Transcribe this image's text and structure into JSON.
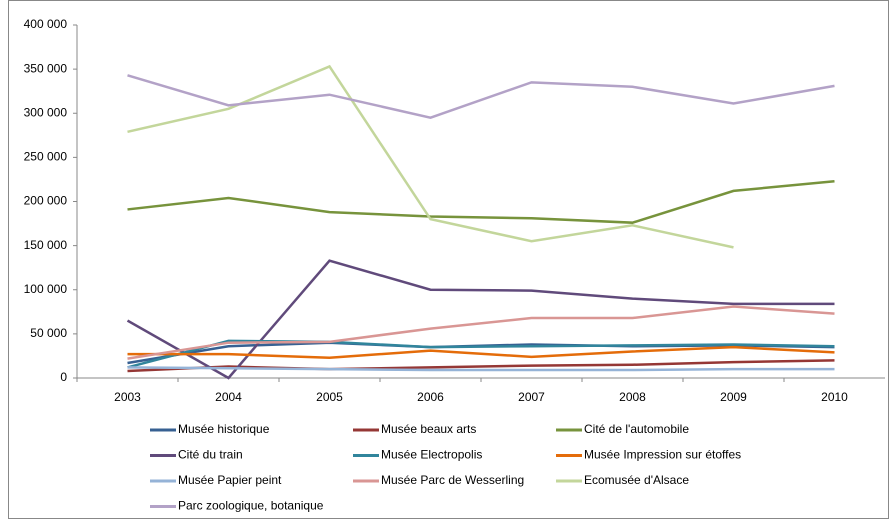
{
  "chart_data": {
    "type": "line",
    "categories": [
      "2003",
      "2004",
      "2005",
      "2006",
      "2007",
      "2008",
      "2009",
      "2010"
    ],
    "ylim": [
      0,
      400000
    ],
    "yticks": [
      {
        "value": 0,
        "label": "0"
      },
      {
        "value": 50000,
        "label": "50 000"
      },
      {
        "value": 100000,
        "label": "100 000"
      },
      {
        "value": 150000,
        "label": "150 000"
      },
      {
        "value": 200000,
        "label": "200 000"
      },
      {
        "value": 250000,
        "label": "250 000"
      },
      {
        "value": 300000,
        "label": "300 000"
      },
      {
        "value": 350000,
        "label": "350 000"
      },
      {
        "value": 400000,
        "label": "400 000"
      }
    ],
    "series": [
      {
        "name": "Musée historique",
        "color": "#376092",
        "values": [
          17000,
          36000,
          40000,
          35000,
          38000,
          36000,
          37000,
          35000
        ]
      },
      {
        "name": "Musée beaux arts",
        "color": "#953735",
        "values": [
          8000,
          13000,
          10000,
          12000,
          14000,
          15000,
          18000,
          20000
        ]
      },
      {
        "name": "Cité de l'automobile",
        "color": "#77933c",
        "values": [
          191000,
          204000,
          188000,
          183000,
          181000,
          176000,
          212000,
          223000
        ]
      },
      {
        "name": "Cité du train",
        "color": "#604a7b",
        "values": [
          65000,
          0,
          133000,
          100000,
          99000,
          90000,
          84000,
          84000
        ]
      },
      {
        "name": "Musée Electropolis",
        "color": "#31859c",
        "values": [
          12000,
          42000,
          41000,
          35000,
          36000,
          37000,
          38000,
          36000
        ]
      },
      {
        "name": "Musée Impression sur étoffes",
        "color": "#e46c0a",
        "values": [
          27000,
          27000,
          23000,
          31000,
          24000,
          30000,
          35000,
          29000
        ]
      },
      {
        "name": "Musée Papier peint",
        "color": "#95b3d7",
        "values": [
          12000,
          11000,
          10000,
          9000,
          9000,
          9000,
          10000,
          10000
        ]
      },
      {
        "name": "Musée Parc de Wesserling",
        "color": "#d99694",
        "values": [
          22000,
          40000,
          41000,
          56000,
          68000,
          68000,
          81000,
          73000
        ]
      },
      {
        "name": "Ecomusée d'Alsace",
        "color": "#c3d69b",
        "values": [
          279000,
          305000,
          353000,
          180000,
          155000,
          173000,
          148000,
          null
        ]
      },
      {
        "name": "Parc zoologique, botanique",
        "color": "#b3a2c7",
        "values": [
          343000,
          309000,
          321000,
          295000,
          335000,
          330000,
          311000,
          331000
        ]
      }
    ]
  }
}
